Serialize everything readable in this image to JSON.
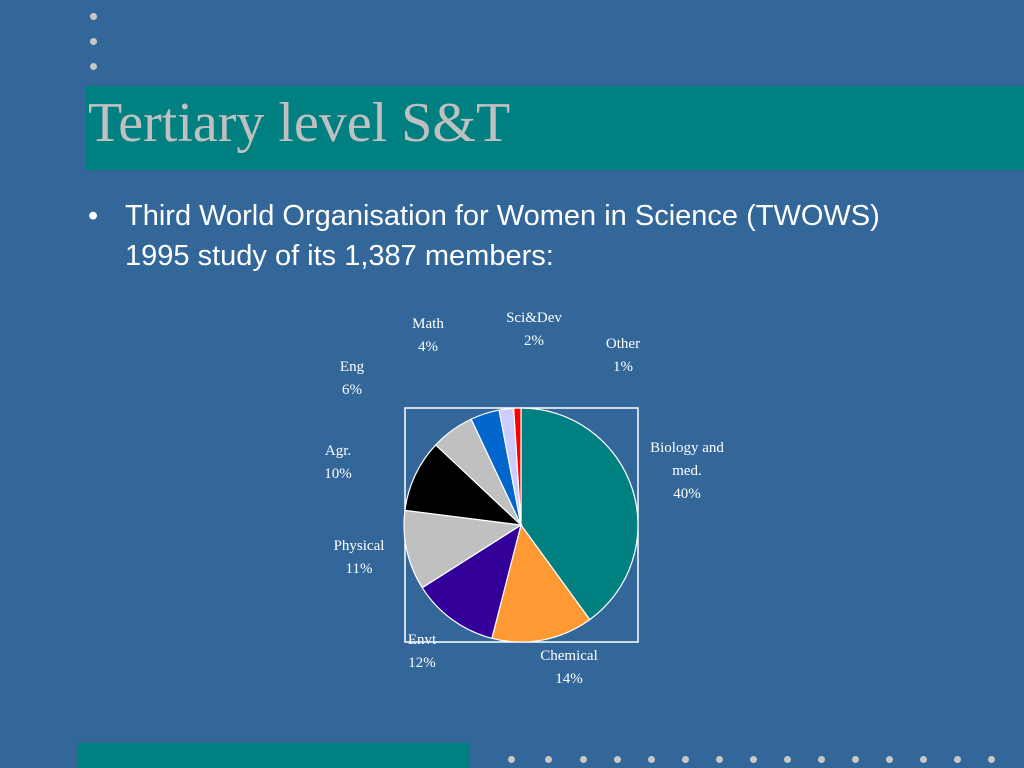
{
  "slide": {
    "title": "Tertiary level S&T",
    "bullet_symbol": "•",
    "bullet_text": "Third World Organisation for Women in Science (TWOWS) 1995 study of its 1,387 members:"
  },
  "colors": {
    "background": "#336699",
    "accent_band": "#008080",
    "title_text": "#c0c0c0"
  },
  "chart_data": {
    "type": "pie",
    "unit": "%",
    "slices": [
      {
        "label": "Biology and med.",
        "value": 40,
        "color": "#008080"
      },
      {
        "label": "Chemical",
        "value": 14,
        "color": "#ff9933"
      },
      {
        "label": "Envt",
        "value": 12,
        "color": "#330099"
      },
      {
        "label": "Physical",
        "value": 11,
        "color": "#c0c0c0"
      },
      {
        "label": "Agr.",
        "value": 10,
        "color": "#000000"
      },
      {
        "label": "Eng",
        "value": 6,
        "color": "#c0c0c0"
      },
      {
        "label": "Math",
        "value": 4,
        "color": "#0066cc"
      },
      {
        "label": "Sci&Dev",
        "value": 2,
        "color": "#ccccff"
      },
      {
        "label": "Other",
        "value": 1,
        "color": "#ff0000"
      }
    ]
  }
}
